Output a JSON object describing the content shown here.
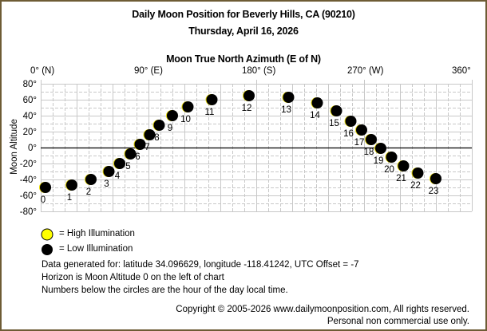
{
  "header": {
    "title": "Daily Moon Position for Beverly Hills, CA (90210)",
    "date": "Thursday, April 16, 2026",
    "x_axis_title": "Moon True North Azimuth (E of N)",
    "y_axis_title": "Moon Altitude"
  },
  "x_ticks": [
    "0° (N)",
    "90° (E)",
    "180° (S)",
    "270° (W)",
    "360°"
  ],
  "y_ticks": [
    "80°",
    "60°",
    "40°",
    "20°",
    "0°",
    "-20°",
    "-40°",
    "-60°",
    "-80°"
  ],
  "legend": {
    "high": "= High Illumination",
    "low": "= Low Illumination",
    "high_color": "#ffff00",
    "low_color": "#000000"
  },
  "info": {
    "line1": "Data generated for: latitude 34.096629, longitude -118.41242, UTC Offset = -7",
    "line2": "Horizon is Moon Altitude 0 on the left of chart",
    "line3": "Numbers below the circles are the hour of the day local time."
  },
  "footer": {
    "copyright": "Copyright © 2005-2026 www.dailymoonposition.com, All rights reserved.",
    "usage": "Personal non commercial use only."
  },
  "colors": {
    "border": "#6e5c35",
    "grid": "#c8c8c8",
    "horizon": "#000000"
  },
  "chart_data": {
    "type": "scatter",
    "title": "Daily Moon Position for Beverly Hills, CA (90210)",
    "subtitle": "Thursday, April 16, 2026",
    "xlabel": "Moon True North Azimuth (E of N)",
    "ylabel": "Moon Altitude",
    "xlim": [
      0,
      360
    ],
    "ylim": [
      -80,
      80
    ],
    "x_tick_labels": [
      "0° (N)",
      "90° (E)",
      "180° (S)",
      "270° (W)",
      "360°"
    ],
    "y_tick_labels": [
      "80°",
      "60°",
      "40°",
      "20°",
      "0°",
      "-20°",
      "-40°",
      "-60°",
      "-80°"
    ],
    "grid": true,
    "legend": [
      "High Illumination",
      "Low Illumination"
    ],
    "illumination": "low",
    "points": [
      {
        "hour": 0,
        "azimuth": 4,
        "altitude": -50
      },
      {
        "hour": 1,
        "azimuth": 26,
        "altitude": -47
      },
      {
        "hour": 2,
        "azimuth": 42,
        "altitude": -40
      },
      {
        "hour": 3,
        "azimuth": 57,
        "altitude": -30
      },
      {
        "hour": 4,
        "azimuth": 66,
        "altitude": -20
      },
      {
        "hour": 5,
        "azimuth": 75,
        "altitude": -8
      },
      {
        "hour": 6,
        "azimuth": 83,
        "altitude": 4
      },
      {
        "hour": 7,
        "azimuth": 91,
        "altitude": 16
      },
      {
        "hour": 8,
        "azimuth": 99,
        "altitude": 28
      },
      {
        "hour": 9,
        "azimuth": 110,
        "altitude": 40
      },
      {
        "hour": 10,
        "azimuth": 123,
        "altitude": 51
      },
      {
        "hour": 11,
        "azimuth": 143,
        "altitude": 60
      },
      {
        "hour": 12,
        "azimuth": 174,
        "altitude": 65
      },
      {
        "hour": 13,
        "azimuth": 207,
        "altitude": 63
      },
      {
        "hour": 14,
        "azimuth": 231,
        "altitude": 56
      },
      {
        "hour": 15,
        "azimuth": 247,
        "altitude": 46
      },
      {
        "hour": 16,
        "azimuth": 259,
        "altitude": 33
      },
      {
        "hour": 17,
        "azimuth": 268,
        "altitude": 22
      },
      {
        "hour": 18,
        "azimuth": 276,
        "altitude": 10
      },
      {
        "hour": 19,
        "azimuth": 284,
        "altitude": -1
      },
      {
        "hour": 20,
        "azimuth": 293,
        "altitude": -12
      },
      {
        "hour": 21,
        "azimuth": 303,
        "altitude": -23
      },
      {
        "hour": 22,
        "azimuth": 315,
        "altitude": -32
      },
      {
        "hour": 23,
        "azimuth": 330,
        "altitude": -39
      }
    ]
  }
}
